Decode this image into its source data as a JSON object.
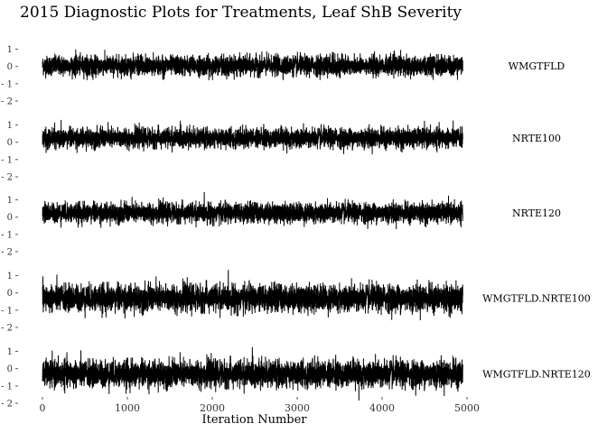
{
  "chart_data": {
    "type": "line",
    "title": "2015 Diagnostic Plots for Treatments, Leaf ShB Severity",
    "xlabel": "Iteration Number",
    "ylabel": "",
    "xlim": [
      0,
      5000
    ],
    "x_ticks": [
      0,
      1000,
      2000,
      3000,
      4000,
      5000
    ],
    "ylim": [
      -2,
      1.5
    ],
    "y_ticks": [
      1,
      0,
      -1,
      -2
    ],
    "iterations": 4950,
    "grid": false,
    "legend": "none",
    "line_color": "#000000",
    "panels": [
      {
        "name": "WMGTFLD",
        "mean": 0.05,
        "sd": 0.28,
        "min": -0.8,
        "max": 1.0
      },
      {
        "name": "NRTE100",
        "mean": 0.25,
        "sd": 0.28,
        "min": -0.7,
        "max": 1.3
      },
      {
        "name": "NRTE120",
        "mean": 0.25,
        "sd": 0.28,
        "min": -0.9,
        "max": 1.5
      },
      {
        "name": "WMGTFLD.NRTE100",
        "mean": -0.3,
        "sd": 0.38,
        "min": -1.8,
        "max": 1.4
      },
      {
        "name": "WMGTFLD.NRTE120",
        "mean": -0.3,
        "sd": 0.38,
        "min": -1.9,
        "max": 1.3
      }
    ]
  }
}
